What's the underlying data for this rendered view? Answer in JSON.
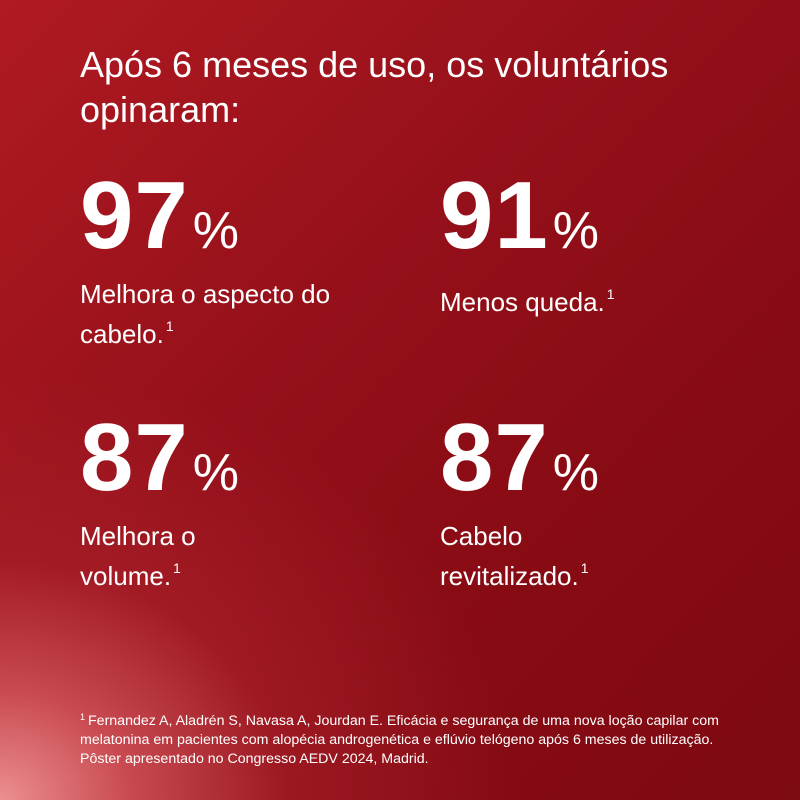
{
  "headline": "Após 6 meses de uso, os voluntários opinaram:",
  "stats": [
    {
      "value": "97",
      "unit": "%",
      "label": "Melhora o aspecto do cabelo.",
      "ref": "1"
    },
    {
      "value": "91",
      "unit": "%",
      "label": "Menos queda.",
      "ref": "1"
    },
    {
      "value": "87",
      "unit": "%",
      "label": "Melhora o volume.",
      "ref": "1"
    },
    {
      "value": "87",
      "unit": "%",
      "label": "Cabelo revitalizado.",
      "ref": "1"
    }
  ],
  "footnote": {
    "ref": "1",
    "text": "Fernandez A, Aladrén S, Navasa A, Jourdan E. Eficácia e segurança de uma nova loção capilar com melatonina em pacientes com alopécia androgenética e eflúvio telógeno após 6 meses de utilização. Pôster apresentado no Congresso AEDV 2024, Madrid."
  },
  "colors": {
    "background": "#8c0b12",
    "glow": "#f09696",
    "text": "#ffffff"
  }
}
